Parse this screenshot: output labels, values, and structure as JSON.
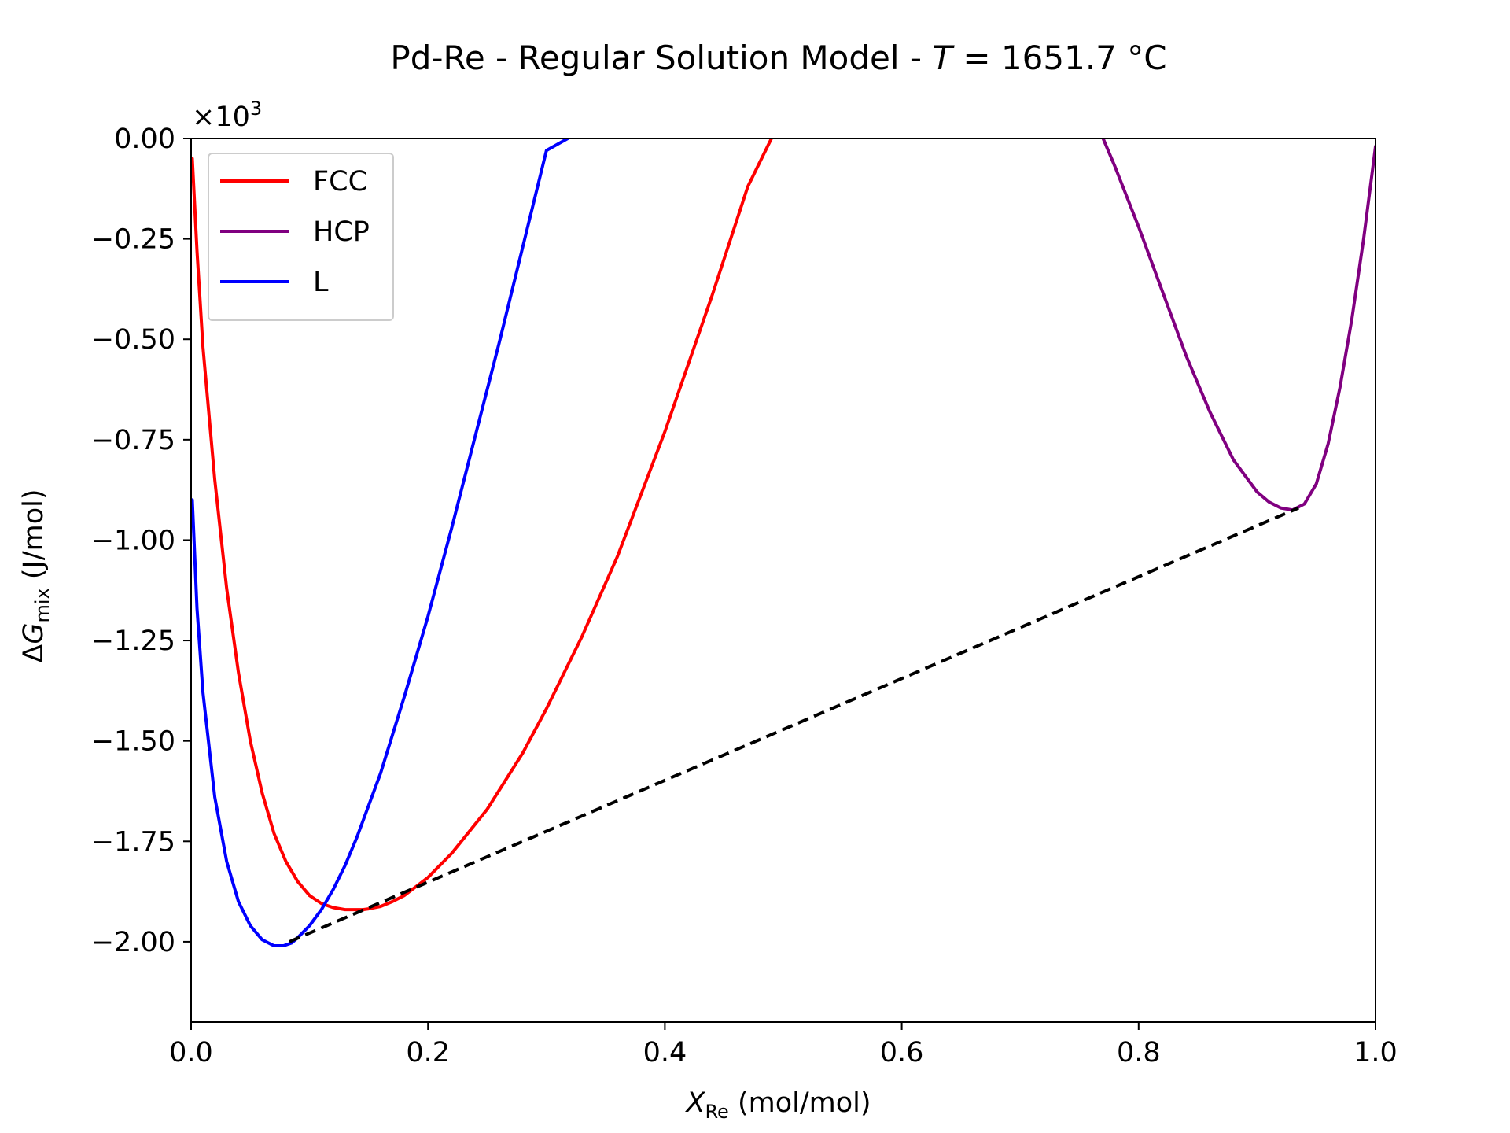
{
  "chart_data": {
    "type": "line",
    "title": "Pd-Re - Regular Solution Model - ",
    "title_var": "T",
    "title_rest": " = 1651.7 °C",
    "xlabel_var": "X",
    "xlabel_sub": "Re",
    "xlabel_rest": " (mol/mol)",
    "ylabel_pre": "Δ",
    "ylabel_var": "G",
    "ylabel_sub": "mix",
    "ylabel_rest": " (J/mol)",
    "y_scale_base": "×10",
    "y_scale_exp": "3",
    "xlim": [
      0.0,
      1.0
    ],
    "ylim": [
      -2.2,
      0.0
    ],
    "x_ticks": [
      0.0,
      0.2,
      0.4,
      0.6,
      0.8,
      1.0
    ],
    "x_tick_labels": [
      "0.0",
      "0.2",
      "0.4",
      "0.6",
      "0.8",
      "1.0"
    ],
    "y_ticks": [
      0.0,
      -0.25,
      -0.5,
      -0.75,
      -1.0,
      -1.25,
      -1.5,
      -1.75,
      -2.0
    ],
    "y_tick_labels": [
      "0.00",
      "−0.25",
      "−0.50",
      "−0.75",
      "−1.00",
      "−1.25",
      "−1.50",
      "−1.75",
      "−2.00"
    ],
    "grid": false,
    "legend_position": "top-left",
    "series": [
      {
        "name": "FCC",
        "color": "#ff0000",
        "x": [
          0.001,
          0.005,
          0.01,
          0.02,
          0.03,
          0.04,
          0.05,
          0.06,
          0.07,
          0.08,
          0.09,
          0.1,
          0.11,
          0.12,
          0.13,
          0.14,
          0.145,
          0.15,
          0.16,
          0.17,
          0.18,
          0.2,
          0.22,
          0.25,
          0.28,
          0.3,
          0.33,
          0.36,
          0.4,
          0.44,
          0.47,
          0.49
        ],
        "y": [
          -0.05,
          -0.28,
          -0.52,
          -0.85,
          -1.12,
          -1.33,
          -1.5,
          -1.63,
          -1.73,
          -1.8,
          -1.85,
          -1.885,
          -1.905,
          -1.915,
          -1.92,
          -1.92,
          -1.92,
          -1.918,
          -1.912,
          -1.9,
          -1.885,
          -1.84,
          -1.78,
          -1.67,
          -1.53,
          -1.42,
          -1.24,
          -1.04,
          -0.73,
          -0.39,
          -0.12,
          0.0
        ]
      },
      {
        "name": "HCP",
        "color": "#800080",
        "x": [
          0.77,
          0.78,
          0.8,
          0.82,
          0.84,
          0.86,
          0.88,
          0.9,
          0.91,
          0.92,
          0.93,
          0.94,
          0.95,
          0.96,
          0.97,
          0.98,
          0.99,
          1.0
        ],
        "y": [
          0.0,
          -0.07,
          -0.22,
          -0.38,
          -0.54,
          -0.68,
          -0.8,
          -0.88,
          -0.905,
          -0.92,
          -0.925,
          -0.91,
          -0.86,
          -0.76,
          -0.62,
          -0.45,
          -0.25,
          -0.02
        ]
      },
      {
        "name": "L",
        "color": "#0000ff",
        "x": [
          0.001,
          0.005,
          0.01,
          0.02,
          0.03,
          0.04,
          0.05,
          0.06,
          0.07,
          0.078,
          0.085,
          0.09,
          0.1,
          0.11,
          0.12,
          0.13,
          0.14,
          0.16,
          0.18,
          0.2,
          0.22,
          0.24,
          0.26,
          0.28,
          0.3,
          0.318
        ],
        "y": [
          -0.9,
          -1.17,
          -1.38,
          -1.64,
          -1.8,
          -1.9,
          -1.96,
          -1.995,
          -2.01,
          -2.01,
          -2.003,
          -1.99,
          -1.96,
          -1.92,
          -1.87,
          -1.81,
          -1.74,
          -1.58,
          -1.39,
          -1.19,
          -0.97,
          -0.74,
          -0.51,
          -0.27,
          -0.03,
          0.0
        ]
      },
      {
        "name": "",
        "color": "#000000",
        "dashed": true,
        "x": [
          0.083,
          0.935
        ],
        "y": [
          -2.0,
          -0.92
        ]
      }
    ]
  }
}
